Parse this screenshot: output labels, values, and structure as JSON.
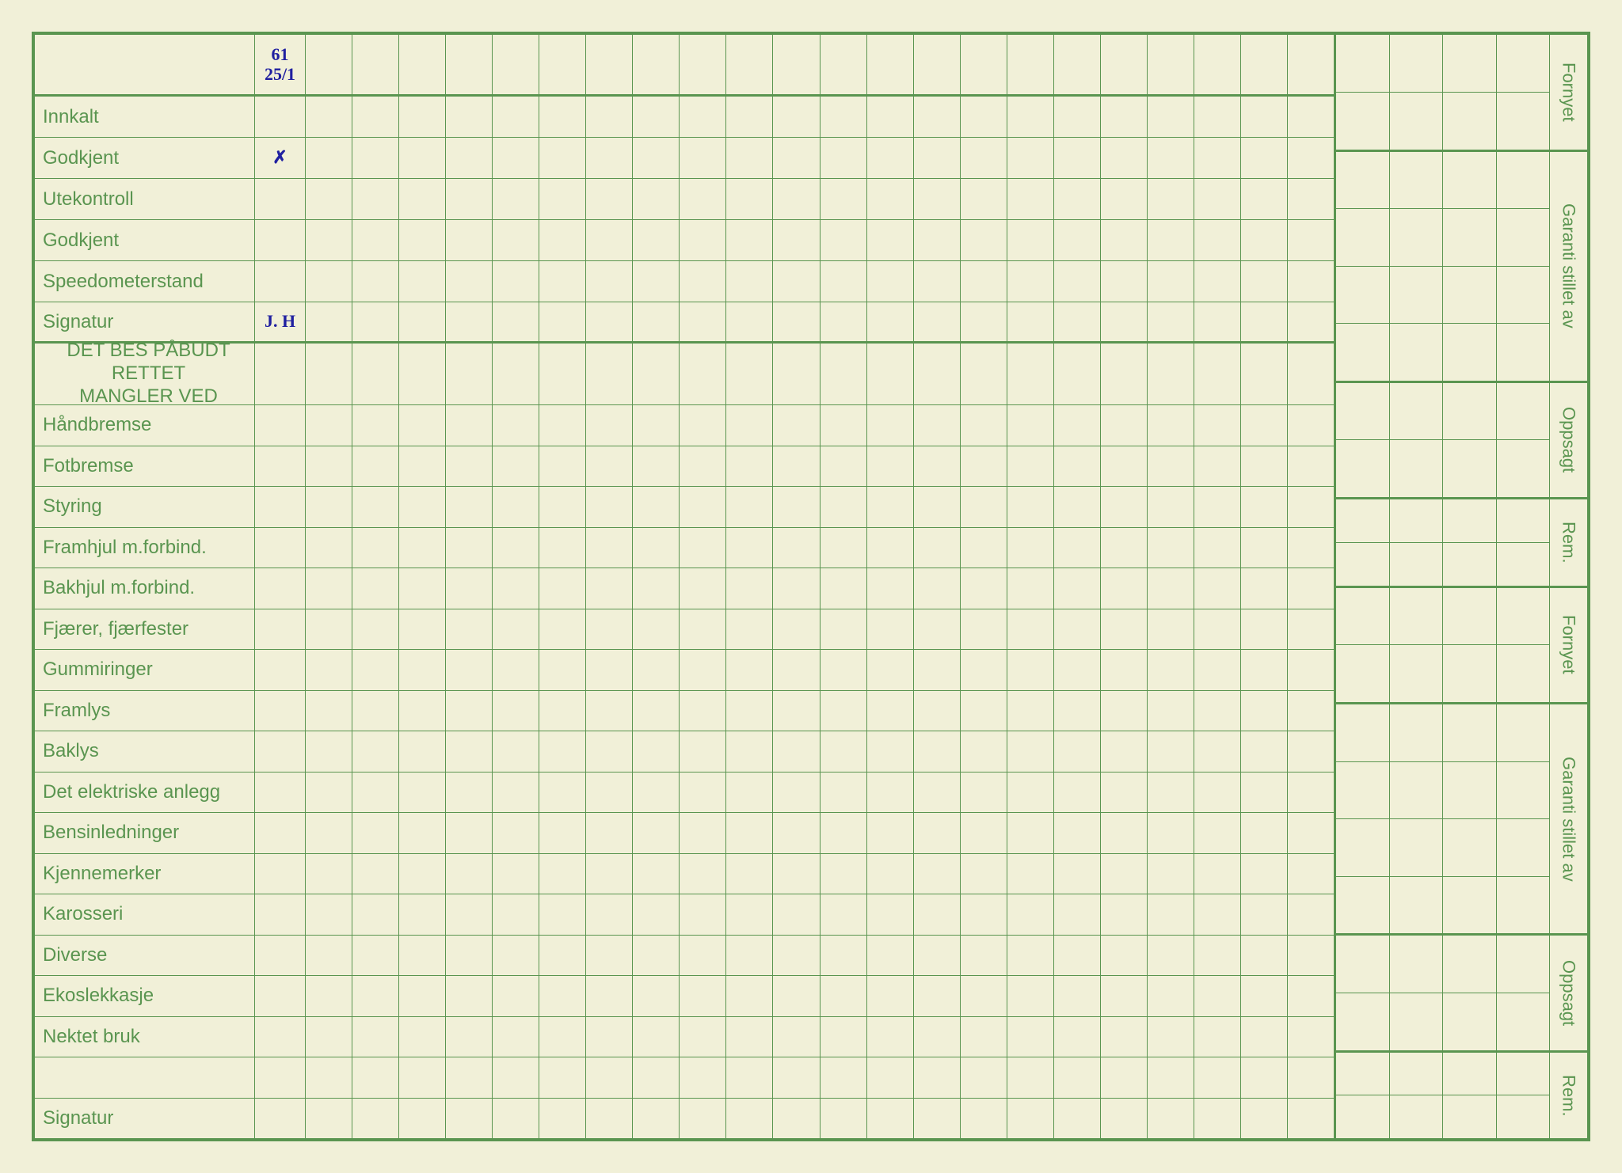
{
  "header_date": {
    "line1": "61",
    "line2": "25/1"
  },
  "main_rows": [
    {
      "label": "Innkalt",
      "values": [
        ""
      ]
    },
    {
      "label": "Godkjent",
      "values": [
        "✗"
      ]
    },
    {
      "label": "Utekontroll",
      "values": [
        ""
      ]
    },
    {
      "label": "Godkjent",
      "values": [
        ""
      ]
    },
    {
      "label": "Speedometerstand",
      "values": [
        ""
      ]
    },
    {
      "label": "Signatur",
      "values": [
        "J. H"
      ],
      "thick": true
    }
  ],
  "section_title": {
    "line1": "DET BES PÅBUDT RETTET",
    "line2": "MANGLER VED"
  },
  "detail_rows": [
    {
      "label": "Håndbremse"
    },
    {
      "label": "Fotbremse"
    },
    {
      "label": "Styring"
    },
    {
      "label": "Framhjul m.forbind."
    },
    {
      "label": "Bakhjul m.forbind."
    },
    {
      "label": "Fjærer, fjærfester"
    },
    {
      "label": "Gummiringer"
    },
    {
      "label": "Framlys"
    },
    {
      "label": "Baklys"
    },
    {
      "label": "Det elektriske anlegg"
    },
    {
      "label": "Bensinledninger"
    },
    {
      "label": "Kjennemerker"
    },
    {
      "label": "Karosseri"
    },
    {
      "label": "Diverse"
    },
    {
      "label": "Ekoslekkasje"
    },
    {
      "label": "Nektet bruk"
    },
    {
      "label": ""
    },
    {
      "label": "Signatur"
    }
  ],
  "side_labels_set1": [
    "Fornyet",
    "Garanti stillet av",
    "Oppsagt",
    "Rem."
  ],
  "side_labels_set2": [
    "Fornyet",
    "Garanti stillet av",
    "Oppsagt",
    "Rem."
  ],
  "grid_columns": 23,
  "side_columns": 4,
  "colors": {
    "paper": "#f1f0d8",
    "grid": "#5a9550",
    "ink": "#2020a0"
  }
}
